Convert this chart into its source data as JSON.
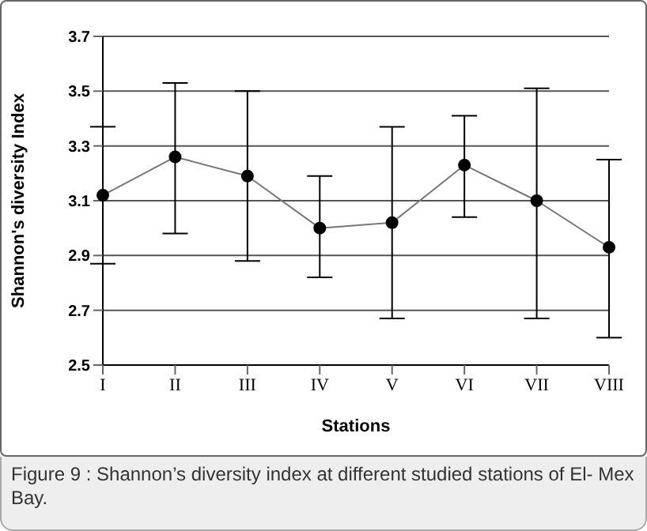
{
  "chart_data": {
    "type": "line",
    "xlabel": "Stations",
    "ylabel": "Shannon's diversity Index",
    "categories": [
      "I",
      "II",
      "III",
      "IV",
      "V",
      "VI",
      "VII",
      "VIII"
    ],
    "series": [
      {
        "color": "#000000",
        "values": [
          3.12,
          3.26,
          3.19,
          3.0,
          3.02,
          3.23,
          3.1,
          2.93
        ],
        "errors": [
          [
            2.87,
            3.37
          ],
          [
            2.98,
            3.53
          ],
          [
            2.88,
            3.5
          ],
          [
            2.82,
            3.19
          ],
          [
            2.67,
            3.37
          ],
          [
            3.04,
            3.41
          ],
          [
            2.67,
            3.51
          ],
          [
            2.6,
            3.25
          ]
        ]
      }
    ],
    "ylim": [
      2.5,
      3.7
    ],
    "yticks": [
      2.5,
      2.7,
      2.9,
      3.1,
      3.3,
      3.5,
      3.7
    ],
    "grid": "y",
    "marker": "circle",
    "line_style": "solid",
    "annotations": [
      "Figure 9 : Shannon’s diversity index at different studied stations of El- Mex Bay."
    ]
  }
}
